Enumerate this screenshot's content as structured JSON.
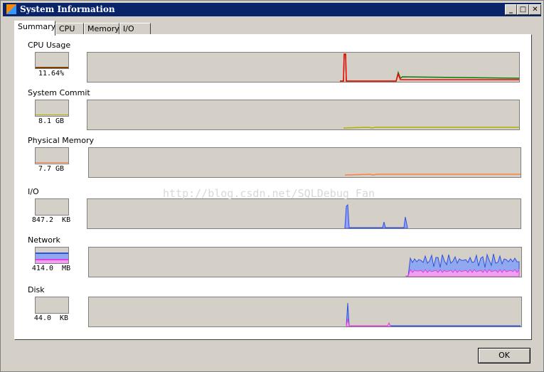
{
  "window": {
    "title": "System Information",
    "minimize": "_",
    "maximize": "□",
    "close": "✕"
  },
  "tabs": [
    {
      "label": "Summary",
      "active": true
    },
    {
      "label": "CPU"
    },
    {
      "label": "Memory"
    },
    {
      "label": "I/O"
    }
  ],
  "sections": [
    {
      "label": "CPU Usage",
      "value": "11.64%",
      "colors": [
        "#ff0000",
        "#008000"
      ]
    },
    {
      "label": "System Commit",
      "value": "8.1 GB",
      "colors": [
        "#b0b000"
      ]
    },
    {
      "label": "Physical Memory",
      "value": "7.7 GB",
      "colors": [
        "#ff8040"
      ]
    },
    {
      "label": "I/O",
      "value": "847.2  KB",
      "colors": [
        "#3050e0"
      ]
    },
    {
      "label": "Network",
      "value": "414.0  MB",
      "colors": [
        "#3050e0",
        "#e040e0"
      ]
    },
    {
      "label": "Disk",
      "value": "44.0  KB",
      "colors": [
        "#3050e0",
        "#e040e0"
      ]
    }
  ],
  "watermark": "http://blog.csdn.net/SQLDebug_Fan",
  "buttons": {
    "ok": "OK"
  }
}
